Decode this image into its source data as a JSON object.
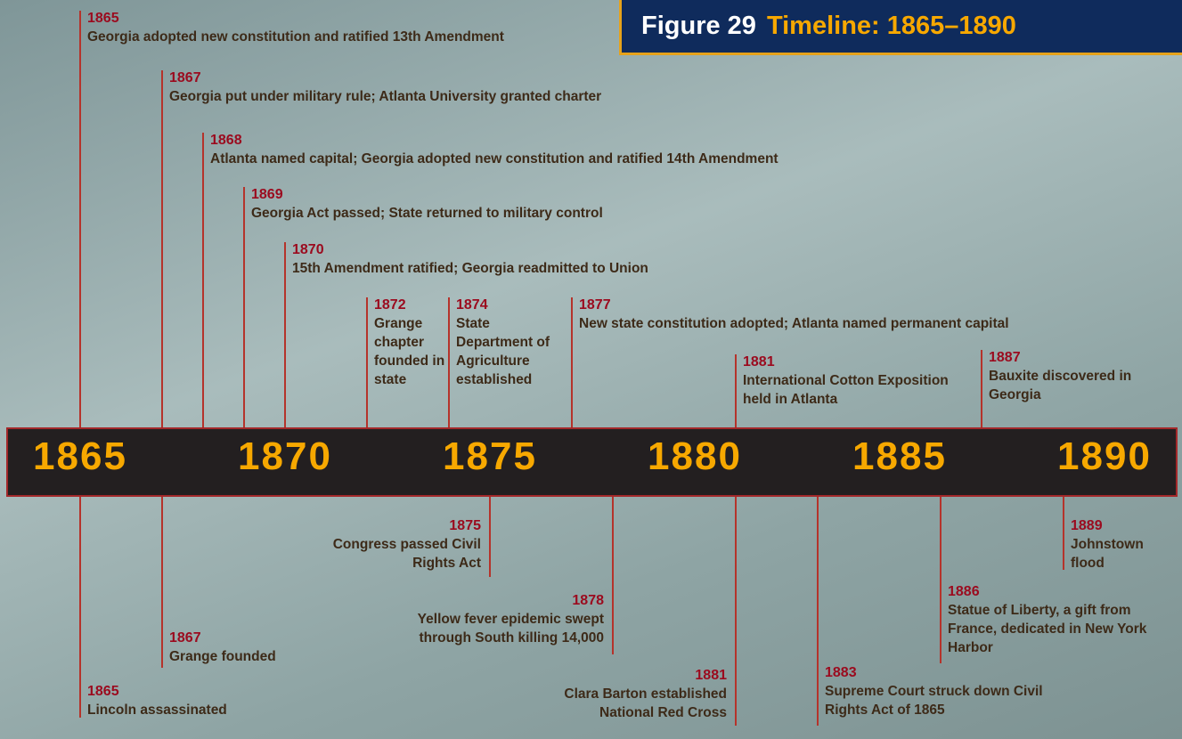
{
  "figure": {
    "label": "Figure 29",
    "title": "Timeline: 1865–1890"
  },
  "axis": {
    "years": [
      "1865",
      "1870",
      "1875",
      "1880",
      "1885",
      "1890"
    ]
  },
  "events_above": [
    {
      "year": "1865",
      "text": "Georgia adopted new constitution and ratified 13th Amendment"
    },
    {
      "year": "1867",
      "text": "Georgia put under military rule; Atlanta University granted charter"
    },
    {
      "year": "1868",
      "text": "Atlanta named capital; Georgia adopted new constitution and ratified 14th Amendment"
    },
    {
      "year": "1869",
      "text": "Georgia Act passed; State returned to military control"
    },
    {
      "year": "1870",
      "text": "15th Amendment ratified; Georgia readmitted to Union"
    },
    {
      "year": "1872",
      "text": "Grange chapter founded in state"
    },
    {
      "year": "1874",
      "text": "State Department of Agriculture established"
    },
    {
      "year": "1877",
      "text": "New state constitution adopted; Atlanta named permanent capital"
    },
    {
      "year": "1881",
      "text": "International Cotton Exposition held in Atlanta"
    },
    {
      "year": "1887",
      "text": "Bauxite discovered in Georgia"
    }
  ],
  "events_below": [
    {
      "year": "1865",
      "text": "Lincoln assassinated"
    },
    {
      "year": "1867",
      "text": "Grange founded"
    },
    {
      "year": "1875",
      "text": "Congress passed Civil Rights Act"
    },
    {
      "year": "1878",
      "text": "Yellow fever epidemic swept through South killing 14,000"
    },
    {
      "year": "1881",
      "text": "Clara Barton established National Red Cross"
    },
    {
      "year": "1883",
      "text": "Supreme Court struck down Civil Rights Act of 1865"
    },
    {
      "year": "1886",
      "text": "Statue of Liberty, a gift from France, dedicated in New York Harbor"
    },
    {
      "year": "1889",
      "text": "Johnstown flood"
    }
  ]
}
